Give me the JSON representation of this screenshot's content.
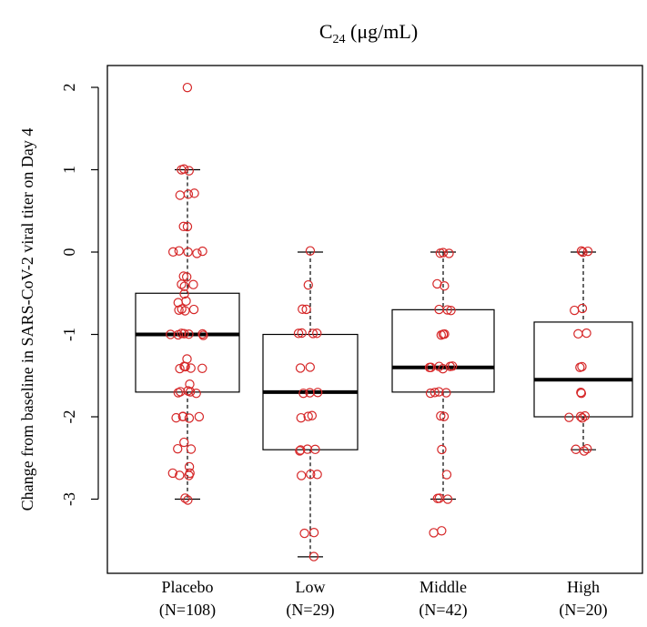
{
  "chart_data": {
    "type": "boxplot",
    "title": {
      "main": "C",
      "subscript": "24",
      "suffix": " (μg/mL)"
    },
    "ylabel": "Change from baseline in SARS-CoV-2 viral titer on Day 4",
    "xlabel": "",
    "ylim": [
      -3.8,
      2.3
    ],
    "yticks": [
      2,
      1,
      0,
      -1,
      -2,
      -3
    ],
    "yticklabels": [
      "2",
      "1",
      "0",
      "-1",
      "-2",
      "-3"
    ],
    "grid": false,
    "point_color": "#d62728",
    "groups": [
      {
        "label": "Placebo",
        "n_label": "(N=108)",
        "whisker_low": -3.0,
        "q1": -1.7,
        "median": -1.0,
        "q3": -0.5,
        "whisker_high": 1.0,
        "points": [
          2.0,
          1.0,
          1.0,
          1.0,
          0.7,
          0.7,
          0.7,
          0.3,
          0.3,
          0.0,
          0.0,
          0.0,
          0.0,
          0.0,
          -0.3,
          -0.3,
          -0.4,
          -0.4,
          -0.4,
          -0.5,
          -0.6,
          -0.6,
          -0.7,
          -0.7,
          -0.7,
          -0.7,
          -1.0,
          -1.0,
          -1.0,
          -1.0,
          -1.0,
          -1.0,
          -1.0,
          -1.3,
          -1.4,
          -1.4,
          -1.4,
          -1.4,
          -1.4,
          -1.6,
          -1.7,
          -1.7,
          -1.7,
          -1.7,
          -1.7,
          -2.0,
          -2.0,
          -2.0,
          -2.0,
          -2.0,
          -2.3,
          -2.4,
          -2.4,
          -2.6,
          -2.7,
          -2.7,
          -2.7,
          -2.7,
          -3.0,
          -3.0
        ]
      },
      {
        "label": "Low",
        "n_label": "(N=29)",
        "whisker_low": -3.7,
        "q1": -2.4,
        "median": -1.7,
        "q3": -1.0,
        "whisker_high": 0.0,
        "points": [
          0.0,
          -0.4,
          -0.7,
          -0.7,
          -1.0,
          -1.0,
          -1.0,
          -1.0,
          -1.4,
          -1.4,
          -1.7,
          -1.7,
          -1.7,
          -2.0,
          -2.0,
          -2.0,
          -2.4,
          -2.4,
          -2.4,
          -2.4,
          -2.7,
          -2.7,
          -2.7,
          -3.4,
          -3.4,
          -3.7
        ]
      },
      {
        "label": "Middle",
        "n_label": "(N=42)",
        "whisker_low": -3.0,
        "q1": -1.7,
        "median": -1.4,
        "q3": -0.7,
        "whisker_high": 0.0,
        "points": [
          0.0,
          0.0,
          0.0,
          -0.4,
          -0.4,
          -0.7,
          -0.7,
          -0.7,
          -1.0,
          -1.0,
          -1.0,
          -1.4,
          -1.4,
          -1.4,
          -1.4,
          -1.4,
          -1.4,
          -1.7,
          -1.7,
          -1.7,
          -1.7,
          -2.0,
          -2.0,
          -2.4,
          -2.7,
          -3.0,
          -3.0,
          -3.0,
          -3.4,
          -3.4
        ]
      },
      {
        "label": "High",
        "n_label": "(N=20)",
        "whisker_low": -2.4,
        "q1": -2.0,
        "median": -1.55,
        "q3": -0.85,
        "whisker_high": 0.0,
        "points": [
          0.0,
          0.0,
          0.0,
          -0.7,
          -0.7,
          -1.0,
          -1.0,
          -1.4,
          -1.4,
          -1.7,
          -1.7,
          -2.0,
          -2.0,
          -2.0,
          -2.0,
          -2.4,
          -2.4,
          -2.4
        ]
      }
    ]
  }
}
